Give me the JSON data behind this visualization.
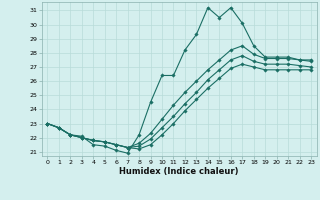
{
  "xlabel": "Humidex (Indice chaleur)",
  "bg_color": "#d4efee",
  "line_color": "#1a6e64",
  "grid_color": "#b8dcd9",
  "spine_color": "#8ab0ae",
  "xlim": [
    -0.5,
    23.5
  ],
  "ylim": [
    20.7,
    31.6
  ],
  "xticks": [
    0,
    1,
    2,
    3,
    4,
    5,
    6,
    7,
    8,
    9,
    10,
    11,
    12,
    13,
    14,
    15,
    16,
    17,
    18,
    19,
    20,
    21,
    22,
    23
  ],
  "yticks": [
    21,
    22,
    23,
    24,
    25,
    26,
    27,
    28,
    29,
    30,
    31
  ],
  "series0": [
    23.0,
    22.7,
    22.2,
    22.1,
    21.5,
    21.4,
    21.1,
    20.9,
    22.2,
    24.5,
    26.4,
    26.4,
    28.2,
    29.3,
    31.2,
    30.5,
    31.2,
    30.1,
    28.5,
    27.7,
    27.7,
    27.7,
    27.5,
    27.5
  ],
  "series1": [
    23.0,
    22.7,
    22.2,
    22.0,
    21.8,
    21.7,
    21.5,
    21.3,
    21.6,
    22.3,
    23.3,
    24.3,
    25.2,
    26.0,
    26.8,
    27.5,
    28.2,
    28.5,
    27.9,
    27.6,
    27.6,
    27.6,
    27.5,
    27.4
  ],
  "series2": [
    23.0,
    22.7,
    22.2,
    22.0,
    21.8,
    21.7,
    21.5,
    21.3,
    21.4,
    21.9,
    22.7,
    23.5,
    24.4,
    25.2,
    26.1,
    26.8,
    27.5,
    27.8,
    27.4,
    27.2,
    27.2,
    27.2,
    27.1,
    27.0
  ],
  "series3": [
    23.0,
    22.7,
    22.2,
    22.0,
    21.8,
    21.7,
    21.5,
    21.3,
    21.2,
    21.5,
    22.2,
    23.0,
    23.9,
    24.7,
    25.5,
    26.2,
    26.9,
    27.2,
    27.0,
    26.8,
    26.8,
    26.8,
    26.8,
    26.8
  ]
}
